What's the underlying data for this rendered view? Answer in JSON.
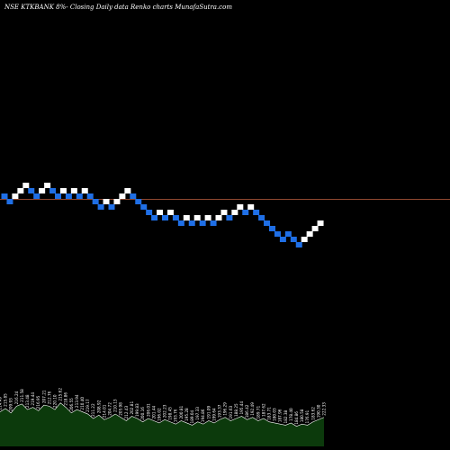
{
  "chart_data": {
    "type": "renko",
    "title": "NSE KTKBANK 8%-  Closing Daily data  Renko  charts MunafaSutra.com",
    "reference_price": 206.5,
    "colors": {
      "background": "#000000",
      "up_brick": "#ffffff",
      "down_brick": "#1f6fe6",
      "reference_line": "#c06040",
      "volume_fill": "#0c3a0c",
      "volume_line": "#ffffff"
    },
    "bricks": [
      {
        "c": 0,
        "r": 0,
        "dir": "down"
      },
      {
        "c": 1,
        "r": 1,
        "dir": "down"
      },
      {
        "c": 2,
        "r": 0,
        "dir": "up"
      },
      {
        "c": 3,
        "r": -1,
        "dir": "up"
      },
      {
        "c": 4,
        "r": -2,
        "dir": "up"
      },
      {
        "c": 5,
        "r": -1,
        "dir": "down"
      },
      {
        "c": 6,
        "r": 0,
        "dir": "down"
      },
      {
        "c": 7,
        "r": -1,
        "dir": "up"
      },
      {
        "c": 8,
        "r": -2,
        "dir": "up"
      },
      {
        "c": 9,
        "r": -1,
        "dir": "down"
      },
      {
        "c": 10,
        "r": 0,
        "dir": "down"
      },
      {
        "c": 11,
        "r": -1,
        "dir": "up"
      },
      {
        "c": 12,
        "r": 0,
        "dir": "down"
      },
      {
        "c": 13,
        "r": -1,
        "dir": "up"
      },
      {
        "c": 14,
        "r": 0,
        "dir": "down"
      },
      {
        "c": 15,
        "r": -1,
        "dir": "up"
      },
      {
        "c": 16,
        "r": 0,
        "dir": "down"
      },
      {
        "c": 17,
        "r": 1,
        "dir": "down"
      },
      {
        "c": 18,
        "r": 2,
        "dir": "down"
      },
      {
        "c": 19,
        "r": 1,
        "dir": "up"
      },
      {
        "c": 20,
        "r": 2,
        "dir": "down"
      },
      {
        "c": 21,
        "r": 1,
        "dir": "up"
      },
      {
        "c": 22,
        "r": 0,
        "dir": "up"
      },
      {
        "c": 23,
        "r": -1,
        "dir": "up"
      },
      {
        "c": 24,
        "r": 0,
        "dir": "down"
      },
      {
        "c": 25,
        "r": 1,
        "dir": "down"
      },
      {
        "c": 26,
        "r": 2,
        "dir": "down"
      },
      {
        "c": 27,
        "r": 3,
        "dir": "down"
      },
      {
        "c": 28,
        "r": 4,
        "dir": "down"
      },
      {
        "c": 29,
        "r": 3,
        "dir": "up"
      },
      {
        "c": 30,
        "r": 4,
        "dir": "down"
      },
      {
        "c": 31,
        "r": 3,
        "dir": "up"
      },
      {
        "c": 32,
        "r": 4,
        "dir": "down"
      },
      {
        "c": 33,
        "r": 5,
        "dir": "down"
      },
      {
        "c": 34,
        "r": 4,
        "dir": "up"
      },
      {
        "c": 35,
        "r": 5,
        "dir": "down"
      },
      {
        "c": 36,
        "r": 4,
        "dir": "up"
      },
      {
        "c": 37,
        "r": 5,
        "dir": "down"
      },
      {
        "c": 38,
        "r": 4,
        "dir": "up"
      },
      {
        "c": 39,
        "r": 5,
        "dir": "down"
      },
      {
        "c": 40,
        "r": 4,
        "dir": "up"
      },
      {
        "c": 41,
        "r": 3,
        "dir": "up"
      },
      {
        "c": 42,
        "r": 4,
        "dir": "down"
      },
      {
        "c": 43,
        "r": 3,
        "dir": "up"
      },
      {
        "c": 44,
        "r": 2,
        "dir": "up"
      },
      {
        "c": 45,
        "r": 3,
        "dir": "down"
      },
      {
        "c": 46,
        "r": 2,
        "dir": "up"
      },
      {
        "c": 47,
        "r": 3,
        "dir": "down"
      },
      {
        "c": 48,
        "r": 4,
        "dir": "down"
      },
      {
        "c": 49,
        "r": 5,
        "dir": "down"
      },
      {
        "c": 50,
        "r": 6,
        "dir": "down"
      },
      {
        "c": 51,
        "r": 7,
        "dir": "down"
      },
      {
        "c": 52,
        "r": 8,
        "dir": "down"
      },
      {
        "c": 53,
        "r": 7,
        "dir": "down"
      },
      {
        "c": 54,
        "r": 8,
        "dir": "down"
      },
      {
        "c": 55,
        "r": 9,
        "dir": "down"
      },
      {
        "c": 56,
        "r": 8,
        "dir": "up"
      },
      {
        "c": 57,
        "r": 7,
        "dir": "up"
      },
      {
        "c": 58,
        "r": 6,
        "dir": "up"
      },
      {
        "c": 59,
        "r": 5,
        "dir": "up"
      }
    ],
    "volume": [
      62,
      68,
      60,
      72,
      76,
      66,
      70,
      64,
      74,
      72,
      66,
      78,
      70,
      60,
      66,
      62,
      58,
      50,
      56,
      48,
      52,
      58,
      52,
      46,
      54,
      50,
      44,
      50,
      46,
      42,
      48,
      44,
      40,
      46,
      42,
      38,
      44,
      40,
      46,
      42,
      48,
      52,
      46,
      50,
      54,
      48,
      52,
      46,
      50,
      44,
      42,
      40,
      38,
      42,
      36,
      40,
      38,
      44,
      48,
      52
    ],
    "volume_labels": [
      "214.49",
      "215.85",
      "209.93",
      "216.24",
      "211.58",
      "213.48",
      "219.44",
      "216.95",
      "207.21",
      "212.76",
      "220.10",
      "215.62",
      "218.86",
      "206.55",
      "213.94",
      "210.40",
      "219.17",
      "211.22",
      "208.92",
      "214.01",
      "204.72",
      "210.13",
      "205.98",
      "212.43",
      "202.81",
      "199.83",
      "200.16",
      "206.01",
      "201.44",
      "196.02",
      "202.23",
      "198.45",
      "193.76",
      "200.81",
      "195.28",
      "189.04",
      "197.33",
      "194.86",
      "191.09",
      "199.64",
      "193.37",
      "196.29",
      "191.63",
      "188.25",
      "195.44",
      "186.42",
      "192.49",
      "189.71",
      "187.62",
      "183.71",
      "180.03",
      "187.96",
      "182.38",
      "178.40",
      "184.86",
      "180.58",
      "176.91",
      "183.62",
      "190.30",
      "222.33"
    ]
  }
}
